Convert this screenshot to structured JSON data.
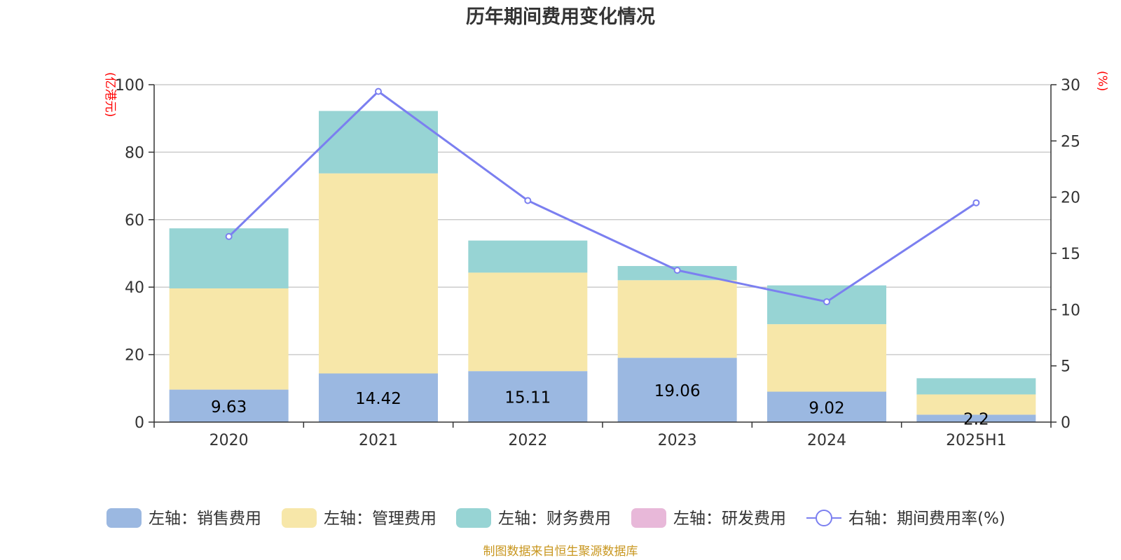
{
  "chart_data": {
    "type": "bar",
    "stacked": true,
    "title": "历年期间费用变化情况",
    "categories": [
      "2020",
      "2021",
      "2022",
      "2023",
      "2024",
      "2025H1"
    ],
    "left_axis": {
      "unit_label": "(亿港元)",
      "min": 0,
      "max": 100,
      "ticks": [
        "0",
        "20",
        "40",
        "60",
        "80",
        "100"
      ]
    },
    "right_axis": {
      "unit_label": "(%)",
      "min": 0,
      "max": 30,
      "ticks": [
        "0",
        "5",
        "10",
        "15",
        "20",
        "25",
        "30"
      ]
    },
    "series": [
      {
        "name": "左轴：销售费用",
        "type": "bar",
        "axis": "left",
        "color": "#9bb8e1",
        "values": [
          9.63,
          14.42,
          15.11,
          19.06,
          9.02,
          2.2
        ],
        "labels": [
          "9.63",
          "14.42",
          "15.11",
          "19.06",
          "9.02",
          "2.2"
        ]
      },
      {
        "name": "左轴：管理费用",
        "type": "bar",
        "axis": "left",
        "color": "#f7e7a9",
        "values": [
          30.0,
          59.3,
          29.2,
          23.0,
          20.0,
          6.0
        ]
      },
      {
        "name": "左轴：财务费用",
        "type": "bar",
        "axis": "left",
        "color": "#97d4d4",
        "values": [
          17.8,
          18.5,
          9.5,
          4.2,
          11.5,
          4.8
        ]
      },
      {
        "name": "左轴：研发费用",
        "type": "bar",
        "axis": "left",
        "color": "#e8b8d9",
        "values": [
          0,
          0,
          0,
          0,
          0,
          0
        ]
      },
      {
        "name": "右轴：期间费用率(%)",
        "type": "line",
        "axis": "right",
        "color": "#7b7ff0",
        "values": [
          16.5,
          29.4,
          19.7,
          13.5,
          10.7,
          19.5
        ]
      }
    ],
    "grid": true,
    "legend_position": "bottom"
  },
  "source": "制图数据来自恒生聚源数据库"
}
